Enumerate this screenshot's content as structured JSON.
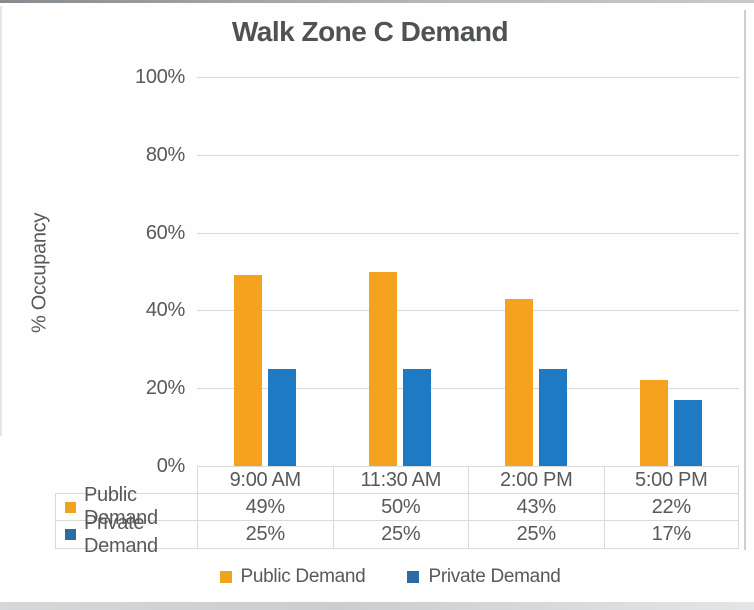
{
  "colors": {
    "public_bar": "#F5A31E",
    "private_bar": "#1F7AC4",
    "public_key": "#EFA41F",
    "private_key": "#2B6CA3",
    "text": "#595959",
    "title_text": "#4F5254",
    "grid": "#D9D9D9",
    "background": "#FEFEFE"
  },
  "chart_data": {
    "type": "bar",
    "title": "Walk Zone C Demand",
    "ylabel": "% Occupancy",
    "categories": [
      "9:00 AM",
      "11:30 AM",
      "2:00 PM",
      "5:00 PM"
    ],
    "series": [
      {
        "name": "Public Demand",
        "values": [
          49,
          50,
          43,
          22
        ],
        "color_key": "public"
      },
      {
        "name": "Private Demand",
        "values": [
          25,
          25,
          25,
          17
        ],
        "color_key": "private"
      }
    ],
    "ylim": [
      0,
      100
    ],
    "ytick_step": 20,
    "ytick_labels": [
      "100%",
      "80%",
      "60%",
      "40%",
      "20%",
      "0%"
    ],
    "grid": true,
    "legend_position": "bottom",
    "data_table_values": [
      [
        "49%",
        "50%",
        "43%",
        "22%"
      ],
      [
        "25%",
        "25%",
        "25%",
        "17%"
      ]
    ]
  }
}
